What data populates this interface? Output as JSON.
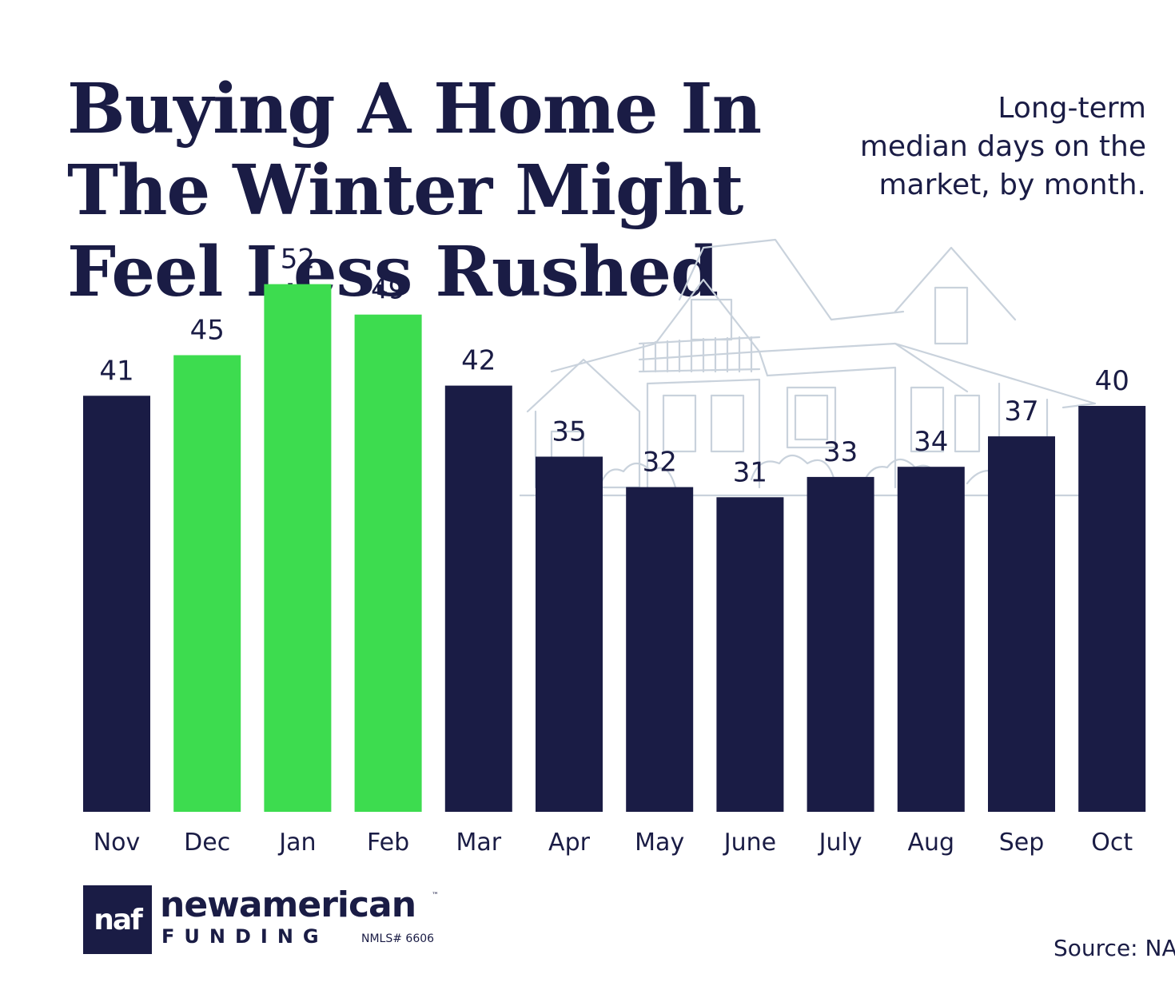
{
  "title_lines": [
    "Buying A Home In",
    "The Winter Might",
    "Feel Less Rushed"
  ],
  "subtitle_lines": [
    "Long-term",
    "median days on the",
    "market, by month."
  ],
  "colors": {
    "navy": "#1a1c45",
    "green": "#3ddc4f",
    "sketch": "#c9d2dc"
  },
  "chart_data": {
    "type": "bar",
    "title": "Buying A Home In The Winter Might Feel Less Rushed",
    "subtitle": "Long-term median days on the market, by month.",
    "xlabel": "",
    "ylabel": "",
    "categories": [
      "Nov",
      "Dec",
      "Jan",
      "Feb",
      "Mar",
      "Apr",
      "May",
      "June",
      "July",
      "Aug",
      "Sep",
      "Oct"
    ],
    "values": [
      41,
      45,
      52,
      49,
      42,
      35,
      32,
      31,
      33,
      34,
      37,
      40
    ],
    "highlighted": [
      "Dec",
      "Jan",
      "Feb"
    ],
    "bar_colors": [
      "#1a1c45",
      "#3ddc4f",
      "#3ddc4f",
      "#3ddc4f",
      "#1a1c45",
      "#1a1c45",
      "#1a1c45",
      "#1a1c45",
      "#1a1c45",
      "#1a1c45",
      "#1a1c45",
      "#1a1c45"
    ],
    "ylim": [
      0,
      52
    ],
    "grid": false,
    "legend": "none",
    "data_labels": true
  },
  "logo": {
    "mark": "naf",
    "wordmark": "newamerican",
    "trademark": "™",
    "sub": "FUNDING",
    "nmls": "NMLS# 6606"
  },
  "source": "Source: NA"
}
